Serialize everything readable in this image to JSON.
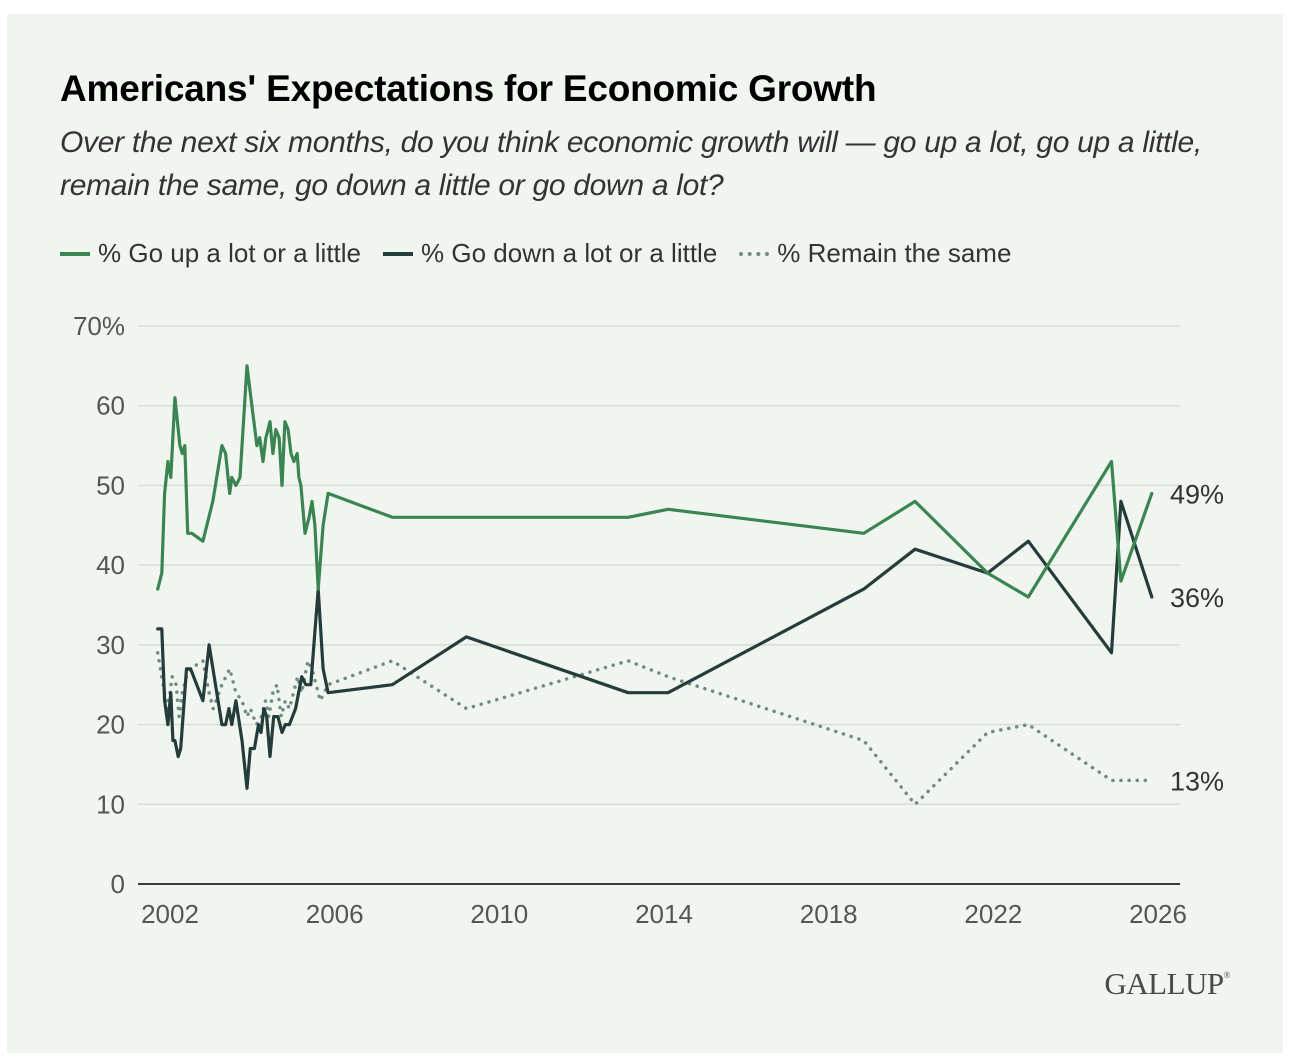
{
  "chart_data": {
    "type": "line",
    "title": "Americans' Expectations for Economic Growth",
    "subtitle": "Over the next six months, do you think economic growth will — go up a lot, go up a little, remain the same, go down a little or go down a lot?",
    "xlabel": "",
    "ylabel": "",
    "ylim": [
      0,
      70
    ],
    "xlim": [
      2001.7,
      2026.0
    ],
    "yticks": [
      0,
      10,
      20,
      30,
      40,
      50,
      60,
      70
    ],
    "ytick_labels": [
      "0",
      "10",
      "20",
      "30",
      "40",
      "50",
      "60",
      "70%"
    ],
    "xticks": [
      2002,
      2006,
      2010,
      2014,
      2018,
      2022,
      2026
    ],
    "xtick_labels": [
      "2002",
      "2006",
      "2010",
      "2014",
      "2018",
      "2022",
      "2026"
    ],
    "grid": true,
    "legend_position": "top-left",
    "series": [
      {
        "name": "% Go up a lot or a little",
        "color": "#3A8551",
        "style": "solid",
        "end_label": "49%",
        "points": [
          [
            2001.7,
            37
          ],
          [
            2001.8,
            39
          ],
          [
            2001.87,
            49
          ],
          [
            2001.95,
            53
          ],
          [
            2002.02,
            51
          ],
          [
            2002.12,
            61
          ],
          [
            2002.24,
            55
          ],
          [
            2002.3,
            54
          ],
          [
            2002.36,
            55
          ],
          [
            2002.43,
            44
          ],
          [
            2002.53,
            44
          ],
          [
            2002.8,
            43
          ],
          [
            2003.04,
            48
          ],
          [
            2003.26,
            55
          ],
          [
            2003.35,
            54
          ],
          [
            2003.45,
            49
          ],
          [
            2003.5,
            51
          ],
          [
            2003.6,
            50
          ],
          [
            2003.7,
            51
          ],
          [
            2003.87,
            65
          ],
          [
            2003.99,
            60
          ],
          [
            2004.11,
            55
          ],
          [
            2004.18,
            56
          ],
          [
            2004.26,
            53
          ],
          [
            2004.33,
            56
          ],
          [
            2004.38,
            57
          ],
          [
            2004.43,
            58
          ],
          [
            2004.5,
            54
          ],
          [
            2004.57,
            57
          ],
          [
            2004.65,
            56
          ],
          [
            2004.72,
            50
          ],
          [
            2004.79,
            58
          ],
          [
            2004.87,
            57
          ],
          [
            2004.94,
            54
          ],
          [
            2005.01,
            53
          ],
          [
            2005.09,
            54
          ],
          [
            2005.13,
            51
          ],
          [
            2005.18,
            50
          ],
          [
            2005.28,
            44
          ],
          [
            2005.38,
            46
          ],
          [
            2005.45,
            48
          ],
          [
            2005.52,
            45
          ],
          [
            2005.6,
            37
          ],
          [
            2005.72,
            45
          ],
          [
            2005.84,
            49
          ],
          [
            2007.4,
            46
          ],
          [
            2013.13,
            46
          ],
          [
            2014.1,
            47
          ],
          [
            2018.85,
            44
          ],
          [
            2020.1,
            48
          ],
          [
            2021.86,
            39
          ],
          [
            2022.85,
            36
          ],
          [
            2024.87,
            53
          ],
          [
            2025.1,
            38
          ],
          [
            2025.85,
            49
          ]
        ]
      },
      {
        "name": "% Go down a lot or a little",
        "color": "#253D3A",
        "style": "solid",
        "end_label": "36%",
        "points": [
          [
            2001.7,
            32
          ],
          [
            2001.8,
            32
          ],
          [
            2001.87,
            23
          ],
          [
            2001.95,
            20
          ],
          [
            2002.02,
            24
          ],
          [
            2002.07,
            18
          ],
          [
            2002.12,
            18
          ],
          [
            2002.2,
            16
          ],
          [
            2002.26,
            17
          ],
          [
            2002.4,
            27
          ],
          [
            2002.5,
            27
          ],
          [
            2002.8,
            23
          ],
          [
            2002.95,
            30
          ],
          [
            2003.26,
            20
          ],
          [
            2003.35,
            20
          ],
          [
            2003.43,
            22
          ],
          [
            2003.5,
            20
          ],
          [
            2003.6,
            23
          ],
          [
            2003.75,
            18
          ],
          [
            2003.87,
            12
          ],
          [
            2003.95,
            17
          ],
          [
            2004.05,
            17
          ],
          [
            2004.15,
            20
          ],
          [
            2004.21,
            19
          ],
          [
            2004.28,
            22
          ],
          [
            2004.35,
            21
          ],
          [
            2004.43,
            16
          ],
          [
            2004.52,
            21
          ],
          [
            2004.62,
            21
          ],
          [
            2004.72,
            19
          ],
          [
            2004.8,
            20
          ],
          [
            2004.9,
            20
          ],
          [
            2005.05,
            22
          ],
          [
            2005.2,
            26
          ],
          [
            2005.3,
            25
          ],
          [
            2005.42,
            25
          ],
          [
            2005.6,
            37
          ],
          [
            2005.72,
            27
          ],
          [
            2005.84,
            24
          ],
          [
            2007.4,
            25
          ],
          [
            2009.2,
            31
          ],
          [
            2013.13,
            24
          ],
          [
            2014.1,
            24
          ],
          [
            2018.85,
            37
          ],
          [
            2020.1,
            42
          ],
          [
            2021.86,
            39
          ],
          [
            2022.85,
            43
          ],
          [
            2024.87,
            29
          ],
          [
            2025.1,
            48
          ],
          [
            2025.85,
            36
          ]
        ]
      },
      {
        "name": "% Remain the same",
        "color": "#6F8C85",
        "style": "dotted",
        "end_label": "13%",
        "points": [
          [
            2001.7,
            29
          ],
          [
            2001.8,
            26
          ],
          [
            2001.87,
            24
          ],
          [
            2001.95,
            22
          ],
          [
            2002.05,
            26
          ],
          [
            2002.15,
            25
          ],
          [
            2002.22,
            21
          ],
          [
            2002.3,
            24
          ],
          [
            2002.4,
            26
          ],
          [
            2002.5,
            27
          ],
          [
            2002.8,
            28
          ],
          [
            2002.95,
            24
          ],
          [
            2003.05,
            22
          ],
          [
            2003.26,
            25
          ],
          [
            2003.45,
            27
          ],
          [
            2003.6,
            24
          ],
          [
            2003.75,
            23
          ],
          [
            2003.87,
            21
          ],
          [
            2003.95,
            22
          ],
          [
            2004.1,
            20
          ],
          [
            2004.22,
            21
          ],
          [
            2004.32,
            23
          ],
          [
            2004.4,
            21
          ],
          [
            2004.5,
            24
          ],
          [
            2004.6,
            25
          ],
          [
            2004.7,
            21
          ],
          [
            2004.8,
            23
          ],
          [
            2004.9,
            22
          ],
          [
            2005.0,
            24
          ],
          [
            2005.1,
            26
          ],
          [
            2005.2,
            24
          ],
          [
            2005.35,
            28
          ],
          [
            2005.45,
            27
          ],
          [
            2005.55,
            25
          ],
          [
            2005.65,
            23
          ],
          [
            2005.84,
            25
          ],
          [
            2007.4,
            28
          ],
          [
            2009.2,
            22
          ],
          [
            2013.13,
            28
          ],
          [
            2014.1,
            26
          ],
          [
            2018.85,
            18
          ],
          [
            2020.1,
            10
          ],
          [
            2021.86,
            19
          ],
          [
            2022.85,
            20
          ],
          [
            2024.87,
            13
          ],
          [
            2025.85,
            13
          ]
        ]
      }
    ]
  },
  "legend": [
    {
      "label": "% Go up a lot or a little",
      "key": "up"
    },
    {
      "label": "% Go down a lot or a little",
      "key": "down"
    },
    {
      "label": "% Remain the same",
      "key": "same"
    }
  ],
  "branding": {
    "logo_text": "GALLUP",
    "logo_mark": "®"
  }
}
